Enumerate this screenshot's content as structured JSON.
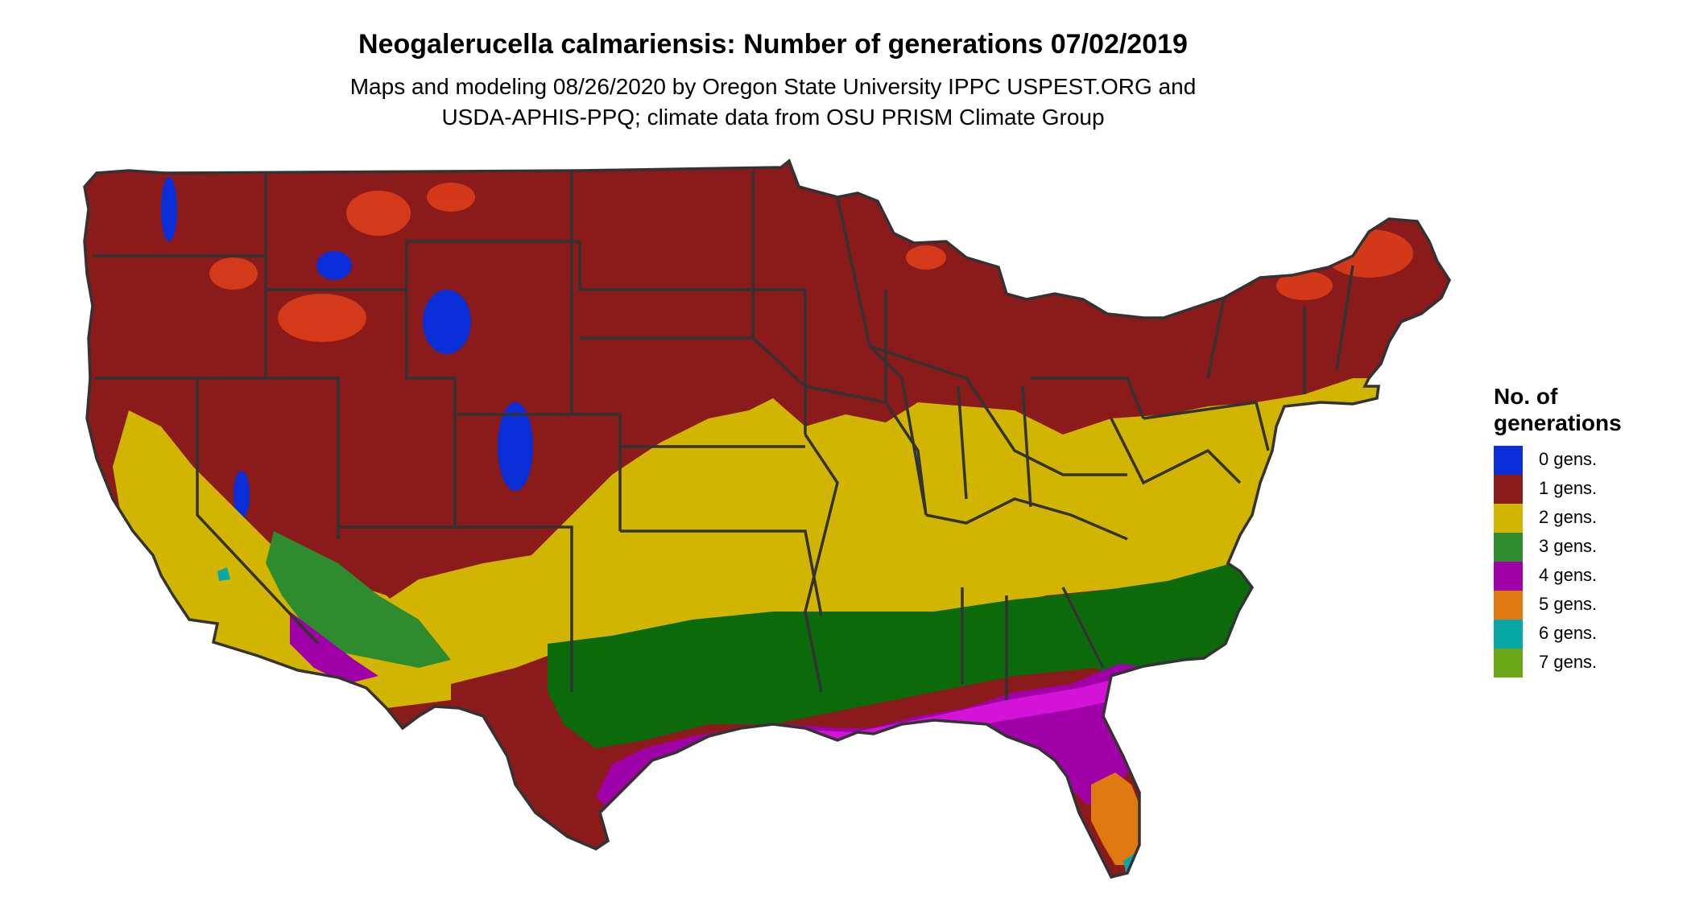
{
  "title": "Neogalerucella calmariensis: Number of generations 07/02/2019",
  "subtitle_line1": "Maps and modeling 08/26/2020 by Oregon State University IPPC USPEST.ORG and",
  "subtitle_line2": "USDA-APHIS-PPQ; climate data from OSU PRISM Climate Group",
  "legend": {
    "title_line1": "No. of",
    "title_line2": "generations",
    "items": [
      {
        "label": "0 gens.",
        "color": "#0a2ed8"
      },
      {
        "label": "1 gens.",
        "color": "#8b1a1a"
      },
      {
        "label": "2 gens.",
        "color": "#d2b500"
      },
      {
        "label": "3 gens.",
        "color": "#2e8b2e"
      },
      {
        "label": "4 gens.",
        "color": "#a000a8"
      },
      {
        "label": "5 gens.",
        "color": "#e07a10"
      },
      {
        "label": "6 gens.",
        "color": "#08a8a8"
      },
      {
        "label": "7 gens.",
        "color": "#6aa81a"
      }
    ]
  },
  "colors": {
    "border": "#333333",
    "zone3_dark": "#0b6b0b",
    "zone4_bright": "#ff22ff",
    "zone1_light": "#e0401a"
  }
}
